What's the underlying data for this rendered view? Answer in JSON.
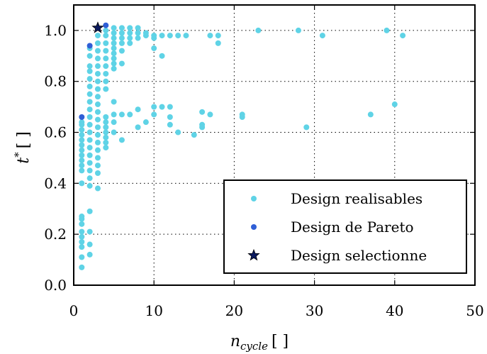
{
  "chart_data": {
    "type": "scatter",
    "xlabel_main": "n",
    "xlabel_sub": "cycle",
    "xlabel_unit": "[ ]",
    "ylabel_main": "t",
    "ylabel_sup": "*",
    "ylabel_unit": "[ ]",
    "xlim": [
      0,
      50
    ],
    "ylim": [
      0.0,
      1.1
    ],
    "xticks": [
      0,
      10,
      20,
      30,
      40,
      50
    ],
    "yticks": [
      0.0,
      0.2,
      0.4,
      0.6,
      0.8,
      1.0
    ],
    "xtick_labels": [
      "0",
      "10",
      "20",
      "30",
      "40",
      "50"
    ],
    "ytick_labels": [
      "0.0",
      "0.2",
      "0.4",
      "0.6",
      "0.8",
      "1.0"
    ],
    "grid": true,
    "legend_position": "lower-right",
    "colors": {
      "realisables": "#5fd3e6",
      "pareto": "#2f5fd6",
      "selected": "#0b1a5e"
    },
    "series": [
      {
        "name": "Design realisables",
        "marker": "circle",
        "points": [
          [
            1,
            0.07
          ],
          [
            1,
            0.11
          ],
          [
            1,
            0.15
          ],
          [
            1,
            0.17
          ],
          [
            1,
            0.19
          ],
          [
            1,
            0.21
          ],
          [
            1,
            0.24
          ],
          [
            1,
            0.26
          ],
          [
            1,
            0.27
          ],
          [
            1,
            0.4
          ],
          [
            1,
            0.45
          ],
          [
            1,
            0.47
          ],
          [
            1,
            0.49
          ],
          [
            1,
            0.51
          ],
          [
            1,
            0.53
          ],
          [
            1,
            0.55
          ],
          [
            1,
            0.57
          ],
          [
            1,
            0.59
          ],
          [
            1,
            0.61
          ],
          [
            1,
            0.63
          ],
          [
            1,
            0.64
          ],
          [
            2,
            0.12
          ],
          [
            2,
            0.16
          ],
          [
            2,
            0.21
          ],
          [
            2,
            0.29
          ],
          [
            2,
            0.39
          ],
          [
            2,
            0.42
          ],
          [
            2,
            0.45
          ],
          [
            2,
            0.48
          ],
          [
            2,
            0.51
          ],
          [
            2,
            0.54
          ],
          [
            2,
            0.57
          ],
          [
            2,
            0.6
          ],
          [
            2,
            0.63
          ],
          [
            2,
            0.66
          ],
          [
            2,
            0.69
          ],
          [
            2,
            0.72
          ],
          [
            2,
            0.75
          ],
          [
            2,
            0.78
          ],
          [
            2,
            0.81
          ],
          [
            2,
            0.84
          ],
          [
            2,
            0.86
          ],
          [
            2,
            0.9
          ],
          [
            2,
            0.93
          ],
          [
            3,
            0.38
          ],
          [
            3,
            0.44
          ],
          [
            3,
            0.47
          ],
          [
            3,
            0.5
          ],
          [
            3,
            0.53
          ],
          [
            3,
            0.56
          ],
          [
            3,
            0.59
          ],
          [
            3,
            0.62
          ],
          [
            3,
            0.65
          ],
          [
            3,
            0.68
          ],
          [
            3,
            0.71
          ],
          [
            3,
            0.74
          ],
          [
            3,
            0.77
          ],
          [
            3,
            0.8
          ],
          [
            3,
            0.83
          ],
          [
            3,
            0.86
          ],
          [
            3,
            0.89
          ],
          [
            3,
            0.92
          ],
          [
            3,
            0.95
          ],
          [
            3,
            0.98
          ],
          [
            4,
            0.54
          ],
          [
            4,
            0.56
          ],
          [
            4,
            0.58
          ],
          [
            4,
            0.6
          ],
          [
            4,
            0.62
          ],
          [
            4,
            0.64
          ],
          [
            4,
            0.66
          ],
          [
            4,
            0.77
          ],
          [
            4,
            0.8
          ],
          [
            4,
            0.83
          ],
          [
            4,
            0.86
          ],
          [
            4,
            0.89
          ],
          [
            4,
            0.92
          ],
          [
            4,
            0.95
          ],
          [
            4,
            0.98
          ],
          [
            4,
            1.0
          ],
          [
            5,
            0.6
          ],
          [
            5,
            0.64
          ],
          [
            5,
            0.67
          ],
          [
            5,
            0.72
          ],
          [
            5,
            0.85
          ],
          [
            5,
            0.87
          ],
          [
            5,
            0.89
          ],
          [
            5,
            0.91
          ],
          [
            5,
            0.93
          ],
          [
            5,
            0.95
          ],
          [
            5,
            0.97
          ],
          [
            5,
            0.99
          ],
          [
            5,
            1.01
          ],
          [
            6,
            0.57
          ],
          [
            6,
            0.67
          ],
          [
            6,
            0.87
          ],
          [
            6,
            0.92
          ],
          [
            6,
            0.95
          ],
          [
            6,
            0.97
          ],
          [
            6,
            0.99
          ],
          [
            6,
            1.01
          ],
          [
            7,
            0.67
          ],
          [
            7,
            0.95
          ],
          [
            7,
            0.97
          ],
          [
            7,
            0.99
          ],
          [
            7,
            1.01
          ],
          [
            8,
            0.62
          ],
          [
            8,
            0.69
          ],
          [
            8,
            0.97
          ],
          [
            8,
            0.99
          ],
          [
            8,
            1.01
          ],
          [
            9,
            0.64
          ],
          [
            9,
            0.98
          ],
          [
            9,
            0.99
          ],
          [
            10,
            0.67
          ],
          [
            10,
            0.7
          ],
          [
            10,
            0.93
          ],
          [
            10,
            0.97
          ],
          [
            10,
            0.98
          ],
          [
            11,
            0.7
          ],
          [
            11,
            0.9
          ],
          [
            11,
            0.98
          ],
          [
            12,
            0.63
          ],
          [
            12,
            0.66
          ],
          [
            12,
            0.7
          ],
          [
            12,
            0.98
          ],
          [
            13,
            0.6
          ],
          [
            13,
            0.98
          ],
          [
            14,
            0.98
          ],
          [
            15,
            0.59
          ],
          [
            16,
            0.62
          ],
          [
            16,
            0.63
          ],
          [
            16,
            0.68
          ],
          [
            17,
            0.67
          ],
          [
            17,
            0.98
          ],
          [
            18,
            0.95
          ],
          [
            18,
            0.98
          ],
          [
            21,
            0.66
          ],
          [
            21,
            0.67
          ],
          [
            23,
            1.0
          ],
          [
            28,
            1.0
          ],
          [
            29,
            0.62
          ],
          [
            31,
            0.98
          ],
          [
            37,
            0.67
          ],
          [
            39,
            1.0
          ],
          [
            40,
            0.71
          ],
          [
            41,
            0.98
          ]
        ]
      },
      {
        "name": "Design de Pareto",
        "marker": "circle",
        "points": [
          [
            1,
            0.66
          ],
          [
            2,
            0.94
          ],
          [
            4,
            1.02
          ]
        ]
      },
      {
        "name": "Design selectionne",
        "marker": "star",
        "points": [
          [
            3,
            1.01
          ]
        ]
      }
    ]
  }
}
